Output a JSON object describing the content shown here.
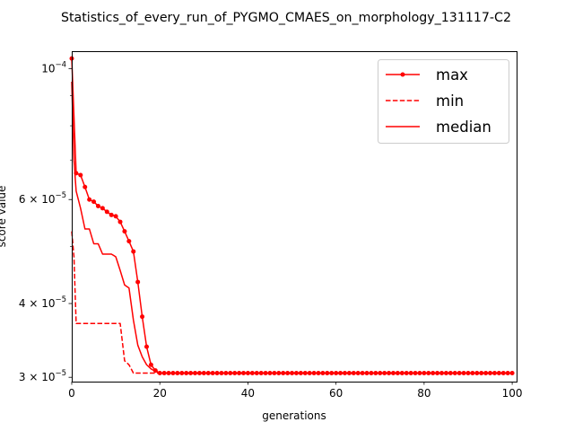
{
  "chart_data": {
    "type": "line",
    "title": "Statistics_of_every_run_of_PYGMO_CMAES_on_morphology_131117-C2",
    "xlabel": "generations",
    "ylabel": "score value",
    "xlim": [
      0,
      101
    ],
    "ylim": [
      2.95e-05,
      0.000107
    ],
    "yscale": "log",
    "x_ticks": [
      0,
      20,
      40,
      60,
      80,
      100
    ],
    "y_ticks": [
      {
        "value": 0.0001,
        "mantissa": "",
        "exponent": "−4"
      },
      {
        "value": 6e-05,
        "mantissa": "6",
        "exponent": "−5"
      },
      {
        "value": 4e-05,
        "mantissa": "4",
        "exponent": "−5"
      },
      {
        "value": 3e-05,
        "mantissa": "3",
        "exponent": "−5"
      }
    ],
    "y_minor_ticks": [
      5e-05,
      7e-05,
      8e-05,
      9e-05
    ],
    "grid": false,
    "legend_position": "top-right",
    "legend": [
      "max",
      "min",
      "median"
    ],
    "series": [
      {
        "name": "max",
        "color": "#ff0000",
        "style": "solid",
        "marker": "dot",
        "x": [
          0,
          1,
          2,
          3,
          4,
          5,
          6,
          7,
          8,
          9,
          10,
          11,
          12,
          13,
          14,
          15,
          16,
          17,
          18,
          19,
          20,
          21,
          22,
          23,
          24,
          25,
          26,
          27,
          28,
          29,
          30,
          31,
          32,
          33,
          34,
          35,
          36,
          37,
          38,
          39,
          40,
          41,
          42,
          43,
          44,
          45,
          46,
          47,
          48,
          49,
          50,
          51,
          52,
          53,
          54,
          55,
          56,
          57,
          58,
          59,
          60,
          61,
          62,
          63,
          64,
          65,
          66,
          67,
          68,
          69,
          70,
          71,
          72,
          73,
          74,
          75,
          76,
          77,
          78,
          79,
          80,
          81,
          82,
          83,
          84,
          85,
          86,
          87,
          88,
          89,
          90,
          91,
          92,
          93,
          94,
          95,
          96,
          97,
          98,
          99,
          100
        ],
        "y": [
          0.000104,
          6.65e-05,
          6.6e-05,
          6.3e-05,
          6e-05,
          5.95e-05,
          5.85e-05,
          5.8e-05,
          5.72e-05,
          5.65e-05,
          5.62e-05,
          5.5e-05,
          5.3e-05,
          5.1e-05,
          4.9e-05,
          4.35e-05,
          3.8e-05,
          3.38e-05,
          3.15e-05,
          3.08e-05,
          3.05e-05,
          3.05e-05,
          3.05e-05,
          3.05e-05,
          3.05e-05,
          3.05e-05,
          3.05e-05,
          3.05e-05,
          3.05e-05,
          3.05e-05,
          3.05e-05,
          3.05e-05,
          3.05e-05,
          3.05e-05,
          3.05e-05,
          3.05e-05,
          3.05e-05,
          3.05e-05,
          3.05e-05,
          3.05e-05,
          3.05e-05,
          3.05e-05,
          3.05e-05,
          3.05e-05,
          3.05e-05,
          3.05e-05,
          3.05e-05,
          3.05e-05,
          3.05e-05,
          3.05e-05,
          3.05e-05,
          3.05e-05,
          3.05e-05,
          3.05e-05,
          3.05e-05,
          3.05e-05,
          3.05e-05,
          3.05e-05,
          3.05e-05,
          3.05e-05,
          3.05e-05,
          3.05e-05,
          3.05e-05,
          3.05e-05,
          3.05e-05,
          3.05e-05,
          3.05e-05,
          3.05e-05,
          3.05e-05,
          3.05e-05,
          3.05e-05,
          3.05e-05,
          3.05e-05,
          3.05e-05,
          3.05e-05,
          3.05e-05,
          3.05e-05,
          3.05e-05,
          3.05e-05,
          3.05e-05,
          3.05e-05,
          3.05e-05,
          3.05e-05,
          3.05e-05,
          3.05e-05,
          3.05e-05,
          3.05e-05,
          3.05e-05,
          3.05e-05,
          3.05e-05,
          3.05e-05,
          3.05e-05,
          3.05e-05,
          3.05e-05,
          3.05e-05,
          3.05e-05,
          3.05e-05,
          3.05e-05,
          3.05e-05,
          3.05e-05,
          3.05e-05
        ]
      },
      {
        "name": "min",
        "color": "#ff0000",
        "style": "dashed",
        "marker": "none",
        "x": [
          0,
          0.5,
          1,
          2,
          3,
          4,
          5,
          6,
          7,
          8,
          9,
          10,
          11,
          12,
          13,
          14,
          15,
          16,
          17,
          18,
          19,
          20,
          21,
          100
        ],
        "y": [
          5.3e-05,
          4.8e-05,
          3.7e-05,
          3.7e-05,
          3.7e-05,
          3.7e-05,
          3.7e-05,
          3.7e-05,
          3.7e-05,
          3.7e-05,
          3.7e-05,
          3.7e-05,
          3.7e-05,
          3.2e-05,
          3.15e-05,
          3.05e-05,
          3.05e-05,
          3.05e-05,
          3.05e-05,
          3.05e-05,
          3.05e-05,
          3.05e-05,
          3.05e-05,
          3.05e-05
        ]
      },
      {
        "name": "median",
        "color": "#ff0000",
        "style": "solid",
        "marker": "none",
        "x": [
          0,
          0.5,
          1,
          2,
          3,
          4,
          5,
          6,
          7,
          8,
          9,
          10,
          11,
          12,
          13,
          14,
          15,
          16,
          17,
          18,
          19,
          20,
          21,
          100
        ],
        "y": [
          9.5e-05,
          7e-05,
          6.2e-05,
          5.8e-05,
          5.35e-05,
          5.35e-05,
          5.05e-05,
          5.05e-05,
          4.85e-05,
          4.85e-05,
          4.85e-05,
          4.8e-05,
          4.55e-05,
          4.3e-05,
          4.25e-05,
          3.75e-05,
          3.4e-05,
          3.25e-05,
          3.15e-05,
          3.1e-05,
          3.07e-05,
          3.05e-05,
          3.05e-05,
          3.05e-05
        ]
      }
    ]
  }
}
